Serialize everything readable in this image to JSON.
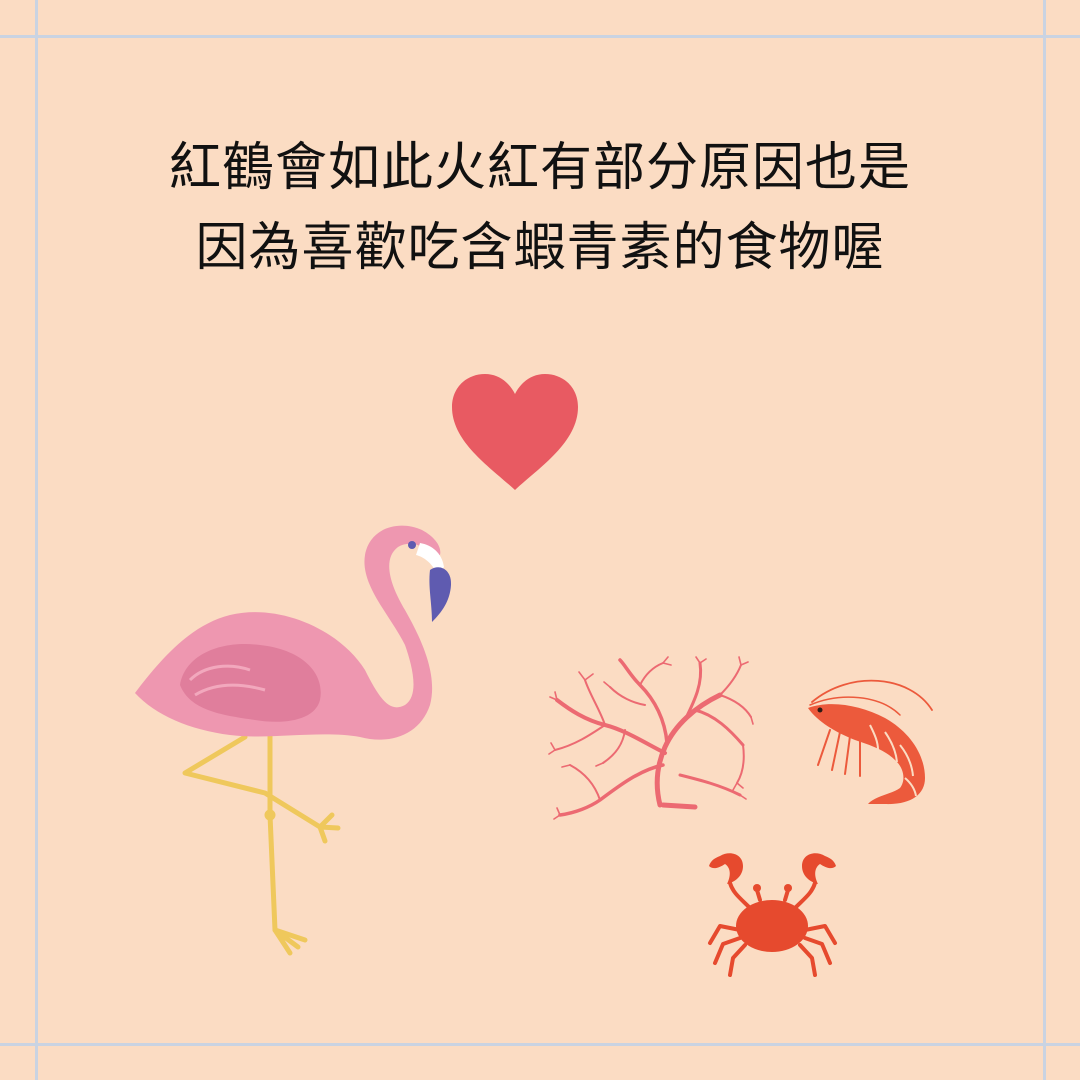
{
  "caption": {
    "line1": "紅鶴會如此火紅有部分原因也是",
    "line2": "因為喜歡吃含蝦青素的食物喔"
  },
  "colors": {
    "background": "#fbdcc3",
    "grid_line": "#c9d3e2",
    "heart": "#e85a62",
    "flamingo_body": "#ee97b0",
    "flamingo_wing": "#e07e9c",
    "flamingo_beak": "#5f5bb0",
    "flamingo_legs": "#efc85c",
    "seaweed": "#ec6a72",
    "shrimp": "#ec5a3c",
    "crab": "#e64a2e"
  },
  "illustrations": [
    "heart-icon",
    "flamingo-icon",
    "seaweed-icon",
    "shrimp-icon",
    "crab-icon"
  ]
}
